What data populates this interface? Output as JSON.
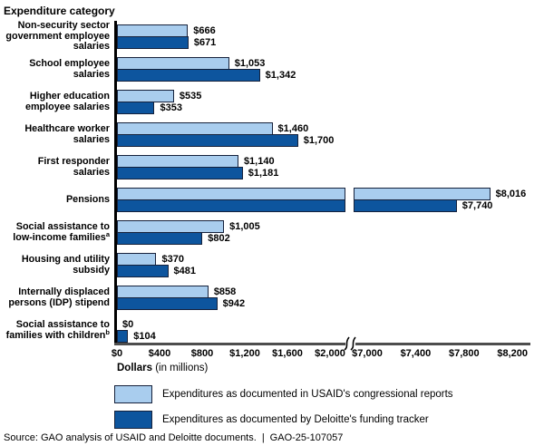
{
  "chart_data": {
    "type": "bar",
    "orientation": "horizontal",
    "title": "Expenditure category",
    "xlabel_bold": "Dollars",
    "xlabel_note": " (in millions)",
    "axis": {
      "unit_prefix": "$",
      "ticks_left": [
        0,
        400,
        800,
        1200,
        1600,
        2000
      ],
      "ticks_right": [
        7000,
        7400,
        7800,
        8200
      ],
      "has_break": true,
      "break_between": [
        2000,
        7000
      ]
    },
    "categories": [
      {
        "lines": [
          "Non-security sector",
          "government employee",
          "salaries"
        ]
      },
      {
        "lines": [
          "School employee",
          "salaries"
        ]
      },
      {
        "lines": [
          "Higher education",
          "employee salaries"
        ]
      },
      {
        "lines": [
          "Healthcare worker",
          "salaries"
        ]
      },
      {
        "lines": [
          "First responder",
          "salaries"
        ]
      },
      {
        "lines": [
          "Pensions"
        ]
      },
      {
        "lines": [
          "Social assistance to",
          "low-income families"
        ],
        "sup": "a"
      },
      {
        "lines": [
          "Housing and utility",
          "subsidy"
        ]
      },
      {
        "lines": [
          "Internally displaced",
          "persons (IDP) stipend"
        ]
      },
      {
        "lines": [
          "Social assistance to",
          "families with children"
        ],
        "sup": "b"
      }
    ],
    "series": [
      {
        "name": "Expenditures as documented in USAID's congressional reports",
        "color": "#A9CDEE",
        "values": [
          666,
          1053,
          535,
          1460,
          1140,
          8016,
          1005,
          370,
          858,
          0
        ],
        "value_labels": [
          "$666",
          "$1,053",
          "$535",
          "$1,460",
          "$1,140",
          "$8,016",
          "$1,005",
          "$370",
          "$858",
          "$0"
        ]
      },
      {
        "name": "Expenditures as documented by Deloitte's funding tracker",
        "color": "#0D559E",
        "values": [
          671,
          1342,
          353,
          1700,
          1181,
          7740,
          802,
          481,
          942,
          104
        ],
        "value_labels": [
          "$671",
          "$1,342",
          "$353",
          "$1,700",
          "$1,181",
          "$7,740",
          "$802",
          "$481",
          "$942",
          "$104"
        ]
      }
    ],
    "legend_position": "bottom"
  },
  "colors": {
    "light_blue": "#A9CDEE",
    "dark_blue": "#0D559E",
    "bar_border": "#15213B",
    "axis_line": "#4D4D4D"
  },
  "source": {
    "text": "Source: GAO analysis of USAID and Deloitte documents.",
    "divider": "|",
    "ref": "GAO-25-107057"
  }
}
